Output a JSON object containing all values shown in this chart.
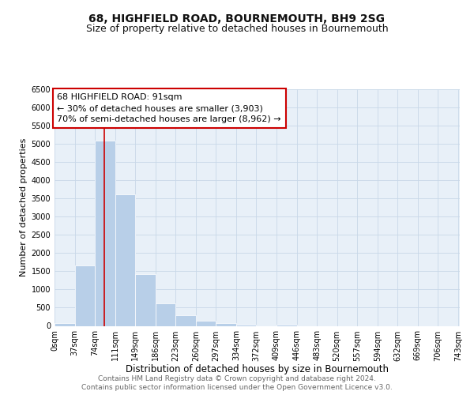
{
  "title": "68, HIGHFIELD ROAD, BOURNEMOUTH, BH9 2SG",
  "subtitle": "Size of property relative to detached houses in Bournemouth",
  "xlabel": "Distribution of detached houses by size in Bournemouth",
  "ylabel": "Number of detached properties",
  "bar_edges": [
    0,
    37,
    74,
    111,
    148,
    185,
    222,
    259,
    296,
    333,
    370,
    407,
    444,
    481,
    518,
    555,
    592,
    629,
    666,
    703,
    740
  ],
  "bar_heights": [
    75,
    1650,
    5080,
    3600,
    1430,
    620,
    300,
    150,
    75,
    25,
    0,
    25,
    0,
    0,
    0,
    0,
    0,
    0,
    0,
    0
  ],
  "bar_color": "#b8cfe8",
  "bar_edge_color": "white",
  "grid_color": "#c8d8e8",
  "bg_color": "#e8f0f8",
  "red_line_x": 91,
  "red_line_color": "#cc0000",
  "annotation_line1": "68 HIGHFIELD ROAD: 91sqm",
  "annotation_line2": "← 30% of detached houses are smaller (3,903)",
  "annotation_line3": "70% of semi-detached houses are larger (8,962) →",
  "annotation_box_color": "#ffffff",
  "annotation_box_edge": "#cc0000",
  "ylim": [
    0,
    6500
  ],
  "yticks": [
    0,
    500,
    1000,
    1500,
    2000,
    2500,
    3000,
    3500,
    4000,
    4500,
    5000,
    5500,
    6000,
    6500
  ],
  "xtick_labels": [
    "0sqm",
    "37sqm",
    "74sqm",
    "111sqm",
    "149sqm",
    "186sqm",
    "223sqm",
    "260sqm",
    "297sqm",
    "334sqm",
    "372sqm",
    "409sqm",
    "446sqm",
    "483sqm",
    "520sqm",
    "557sqm",
    "594sqm",
    "632sqm",
    "669sqm",
    "706sqm",
    "743sqm"
  ],
  "footer_line1": "Contains HM Land Registry data © Crown copyright and database right 2024.",
  "footer_line2": "Contains public sector information licensed under the Open Government Licence v3.0.",
  "title_fontsize": 10,
  "subtitle_fontsize": 9,
  "xlabel_fontsize": 8.5,
  "ylabel_fontsize": 8,
  "tick_fontsize": 7,
  "annotation_fontsize": 8,
  "footer_fontsize": 6.5
}
